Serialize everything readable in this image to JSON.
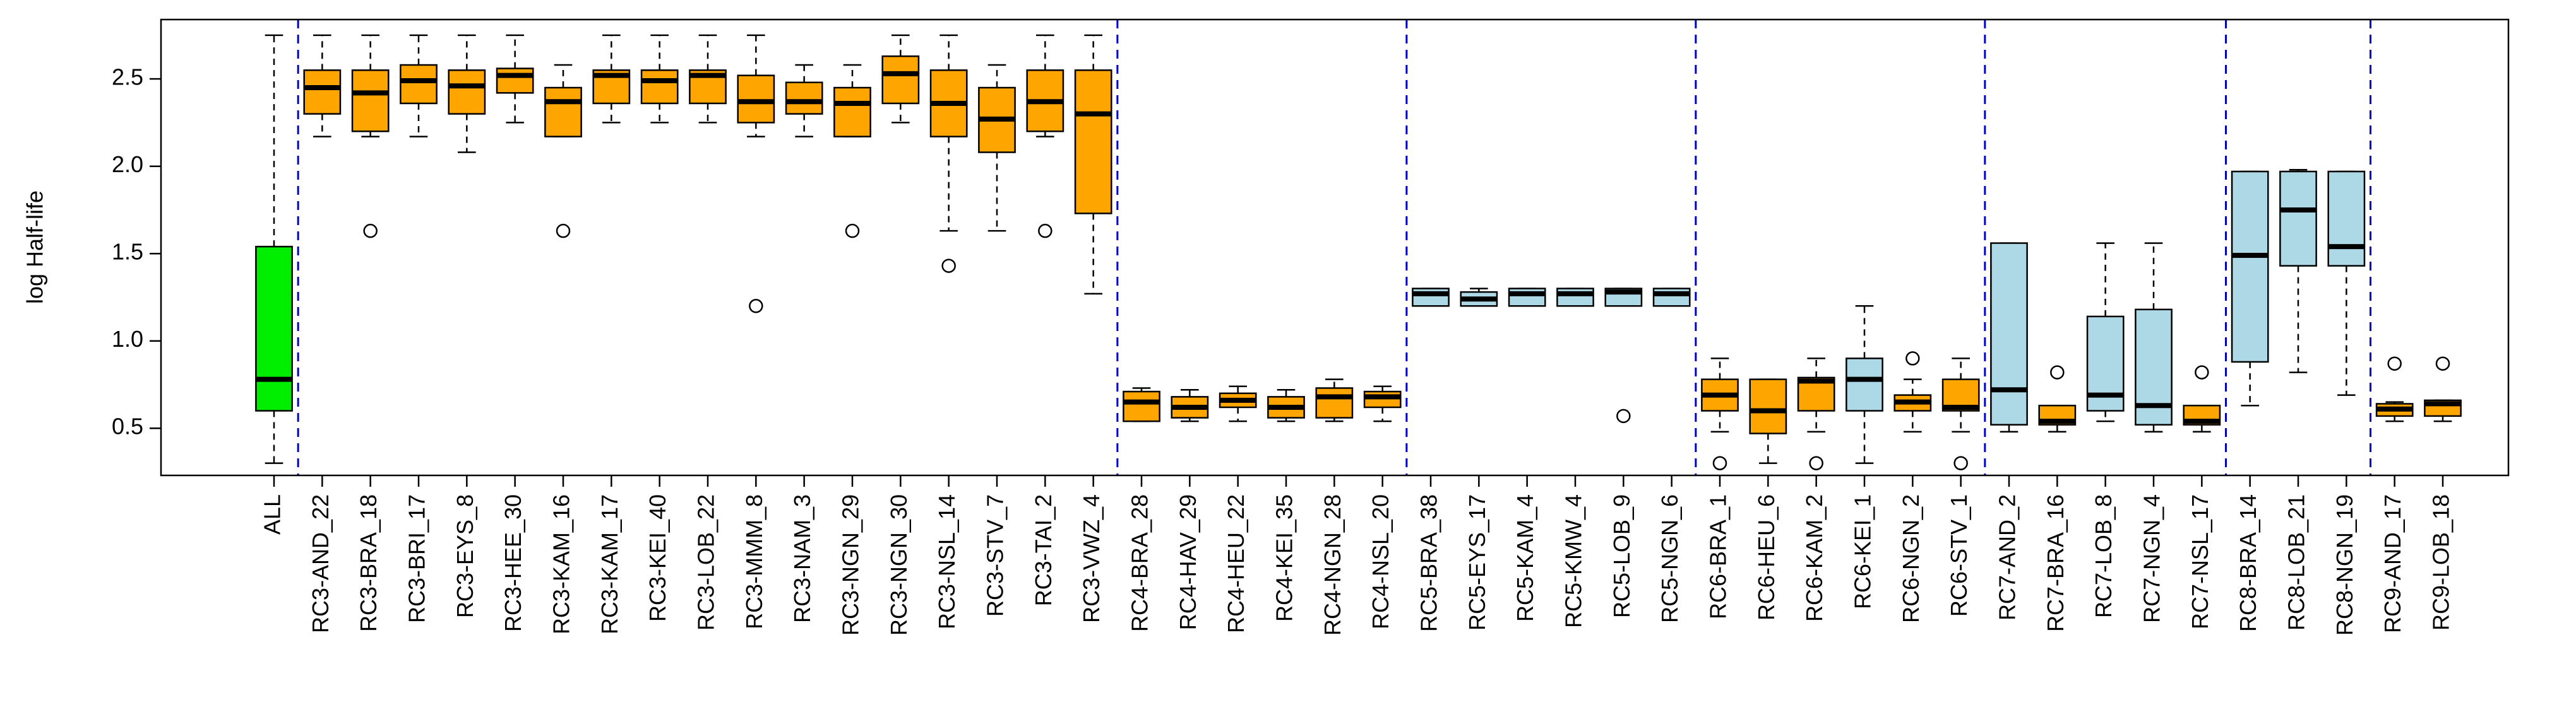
{
  "chart_data": {
    "type": "box",
    "ylabel": "log Half-life",
    "ylim": [
      0.23,
      2.84
    ],
    "yticks": [
      0.5,
      {
        "value": 1,
        "label": "1.0"
      },
      1.5,
      {
        "value": 2,
        "label": "2.0"
      },
      2.5
    ],
    "separator_color": "#0000cc",
    "categories": [
      "ALL",
      "RC3-AND_22",
      "RC3-BRA_18",
      "RC3-BRI_17",
      "RC3-EYS_8",
      "RC3-HEE_30",
      "RC3-KAM_16",
      "RC3-KAM_17",
      "RC3-KEI_40",
      "RC3-LOB_22",
      "RC3-MMM_8",
      "RC3-NAM_3",
      "RC3-NGN_29",
      "RC3-NGN_30",
      "RC3-NSL_14",
      "RC3-STV_7",
      "RC3-TAI_2",
      "RC3-VWZ_4",
      "RC4-BRA_28",
      "RC4-HAV_29",
      "RC4-HEU_22",
      "RC4-KEI_35",
      "RC4-NGN_28",
      "RC4-NSL_20",
      "RC5-BRA_38",
      "RC5-EYS_17",
      "RC5-KAM_4",
      "RC5-KMW_4",
      "RC5-LOB_9",
      "RC5-NGN_6",
      "RC6-BRA_1",
      "RC6-HEU_6",
      "RC6-KAM_2",
      "RC6-KEI_1",
      "RC6-NGN_2",
      "RC6-STV_1",
      "RC7-AND_2",
      "RC7-BRA_16",
      "RC7-LOB_8",
      "RC7-NGN_4",
      "RC7-NSL_17",
      "RC8-BRA_14",
      "RC8-LOB_21",
      "RC8-NGN_19",
      "RC9-AND_17",
      "RC9-LOB_18"
    ],
    "colors": [
      "#00ee00",
      "#ffa500",
      "#ffa500",
      "#ffa500",
      "#ffa500",
      "#ffa500",
      "#ffa500",
      "#ffa500",
      "#ffa500",
      "#ffa500",
      "#ffa500",
      "#ffa500",
      "#ffa500",
      "#ffa500",
      "#ffa500",
      "#ffa500",
      "#ffa500",
      "#ffa500",
      "#ffa500",
      "#ffa500",
      "#ffa500",
      "#ffa500",
      "#ffa500",
      "#ffa500",
      "#add8e6",
      "#add8e6",
      "#add8e6",
      "#add8e6",
      "#add8e6",
      "#add8e6",
      "#ffa500",
      "#ffa500",
      "#ffa500",
      "#add8e6",
      "#ffa500",
      "#ffa500",
      "#add8e6",
      "#ffa500",
      "#add8e6",
      "#add8e6",
      "#ffa500",
      "#add8e6",
      "#add8e6",
      "#add8e6",
      "#ffa500",
      "#ffa500"
    ],
    "boxes": [
      {
        "min": 0.3,
        "q1": 0.6,
        "median": 0.78,
        "q3": 1.54,
        "max": 2.75,
        "outliers": []
      },
      {
        "min": 2.17,
        "q1": 2.3,
        "median": 2.45,
        "q3": 2.55,
        "max": 2.75,
        "outliers": []
      },
      {
        "min": 2.17,
        "q1": 2.2,
        "median": 2.42,
        "q3": 2.55,
        "max": 2.75,
        "outliers": [
          1.63
        ]
      },
      {
        "min": 2.17,
        "q1": 2.36,
        "median": 2.49,
        "q3": 2.58,
        "max": 2.75,
        "outliers": []
      },
      {
        "min": 2.08,
        "q1": 2.3,
        "median": 2.46,
        "q3": 2.55,
        "max": 2.75,
        "outliers": []
      },
      {
        "min": 2.25,
        "q1": 2.42,
        "median": 2.52,
        "q3": 2.56,
        "max": 2.75,
        "outliers": []
      },
      {
        "min": 2.17,
        "q1": 2.17,
        "median": 2.37,
        "q3": 2.45,
        "max": 2.58,
        "outliers": [
          1.63
        ]
      },
      {
        "min": 2.25,
        "q1": 2.36,
        "median": 2.52,
        "q3": 2.55,
        "max": 2.75,
        "outliers": []
      },
      {
        "min": 2.25,
        "q1": 2.36,
        "median": 2.49,
        "q3": 2.55,
        "max": 2.75,
        "outliers": []
      },
      {
        "min": 2.25,
        "q1": 2.36,
        "median": 2.52,
        "q3": 2.55,
        "max": 2.75,
        "outliers": []
      },
      {
        "min": 2.17,
        "q1": 2.25,
        "median": 2.37,
        "q3": 2.52,
        "max": 2.75,
        "outliers": [
          1.2
        ]
      },
      {
        "min": 2.17,
        "q1": 2.3,
        "median": 2.37,
        "q3": 2.48,
        "max": 2.58,
        "outliers": []
      },
      {
        "min": 2.17,
        "q1": 2.17,
        "median": 2.36,
        "q3": 2.45,
        "max": 2.58,
        "outliers": [
          1.63
        ]
      },
      {
        "min": 2.25,
        "q1": 2.36,
        "median": 2.53,
        "q3": 2.63,
        "max": 2.75,
        "outliers": []
      },
      {
        "min": 1.63,
        "q1": 2.17,
        "median": 2.36,
        "q3": 2.55,
        "max": 2.75,
        "outliers": [
          1.43
        ]
      },
      {
        "min": 1.63,
        "q1": 2.08,
        "median": 2.27,
        "q3": 2.45,
        "max": 2.58,
        "outliers": []
      },
      {
        "min": 2.17,
        "q1": 2.2,
        "median": 2.37,
        "q3": 2.55,
        "max": 2.75,
        "outliers": [
          1.63
        ]
      },
      {
        "min": 1.27,
        "q1": 1.73,
        "median": 2.3,
        "q3": 2.55,
        "max": 2.75,
        "outliers": []
      },
      {
        "min": 0.54,
        "q1": 0.54,
        "median": 0.65,
        "q3": 0.71,
        "max": 0.73,
        "outliers": []
      },
      {
        "min": 0.54,
        "q1": 0.56,
        "median": 0.62,
        "q3": 0.68,
        "max": 0.72,
        "outliers": []
      },
      {
        "min": 0.54,
        "q1": 0.62,
        "median": 0.66,
        "q3": 0.7,
        "max": 0.74,
        "outliers": []
      },
      {
        "min": 0.54,
        "q1": 0.56,
        "median": 0.62,
        "q3": 0.68,
        "max": 0.72,
        "outliers": []
      },
      {
        "min": 0.54,
        "q1": 0.56,
        "median": 0.68,
        "q3": 0.73,
        "max": 0.78,
        "outliers": []
      },
      {
        "min": 0.54,
        "q1": 0.62,
        "median": 0.68,
        "q3": 0.71,
        "max": 0.74,
        "outliers": []
      },
      {
        "min": 1.2,
        "q1": 1.2,
        "median": 1.27,
        "q3": 1.3,
        "max": 1.3,
        "outliers": []
      },
      {
        "min": 1.2,
        "q1": 1.2,
        "median": 1.24,
        "q3": 1.28,
        "max": 1.3,
        "outliers": []
      },
      {
        "min": 1.2,
        "q1": 1.2,
        "median": 1.27,
        "q3": 1.3,
        "max": 1.3,
        "outliers": []
      },
      {
        "min": 1.2,
        "q1": 1.2,
        "median": 1.27,
        "q3": 1.3,
        "max": 1.3,
        "outliers": []
      },
      {
        "min": 1.2,
        "q1": 1.2,
        "median": 1.28,
        "q3": 1.3,
        "max": 1.3,
        "outliers": [
          0.57
        ]
      },
      {
        "min": 1.2,
        "q1": 1.2,
        "median": 1.27,
        "q3": 1.3,
        "max": 1.3,
        "outliers": []
      },
      {
        "min": 0.48,
        "q1": 0.6,
        "median": 0.69,
        "q3": 0.78,
        "max": 0.9,
        "outliers": [
          0.3
        ]
      },
      {
        "min": 0.3,
        "q1": 0.47,
        "median": 0.6,
        "q3": 0.78,
        "max": 0.78,
        "outliers": []
      },
      {
        "min": 0.48,
        "q1": 0.6,
        "median": 0.77,
        "q3": 0.79,
        "max": 0.9,
        "outliers": [
          0.3
        ]
      },
      {
        "min": 0.3,
        "q1": 0.6,
        "median": 0.78,
        "q3": 0.9,
        "max": 1.2,
        "outliers": []
      },
      {
        "min": 0.48,
        "q1": 0.6,
        "median": 0.65,
        "q3": 0.69,
        "max": 0.78,
        "outliers": [
          0.9
        ]
      },
      {
        "min": 0.48,
        "q1": 0.6,
        "median": 0.62,
        "q3": 0.78,
        "max": 0.9,
        "outliers": [
          0.3
        ]
      },
      {
        "min": 0.48,
        "q1": 0.52,
        "median": 0.72,
        "q3": 1.56,
        "max": 1.56,
        "outliers": []
      },
      {
        "min": 0.48,
        "q1": 0.52,
        "median": 0.54,
        "q3": 0.63,
        "max": 0.63,
        "outliers": [
          0.82
        ]
      },
      {
        "min": 0.54,
        "q1": 0.6,
        "median": 0.69,
        "q3": 1.14,
        "max": 1.56,
        "outliers": []
      },
      {
        "min": 0.48,
        "q1": 0.52,
        "median": 0.63,
        "q3": 1.18,
        "max": 1.56,
        "outliers": []
      },
      {
        "min": 0.48,
        "q1": 0.52,
        "median": 0.54,
        "q3": 0.63,
        "max": 0.63,
        "outliers": [
          0.82
        ]
      },
      {
        "min": 0.63,
        "q1": 0.88,
        "median": 1.49,
        "q3": 1.97,
        "max": 1.97,
        "outliers": []
      },
      {
        "min": 0.82,
        "q1": 1.43,
        "median": 1.75,
        "q3": 1.97,
        "max": 1.98,
        "outliers": []
      },
      {
        "min": 0.69,
        "q1": 1.43,
        "median": 1.54,
        "q3": 1.97,
        "max": 1.97,
        "outliers": []
      },
      {
        "min": 0.54,
        "q1": 0.57,
        "median": 0.61,
        "q3": 0.64,
        "max": 0.65,
        "outliers": [
          0.87
        ]
      },
      {
        "min": 0.54,
        "q1": 0.57,
        "median": 0.64,
        "q3": 0.66,
        "max": 0.66,
        "outliers": [
          0.87
        ]
      }
    ]
  }
}
